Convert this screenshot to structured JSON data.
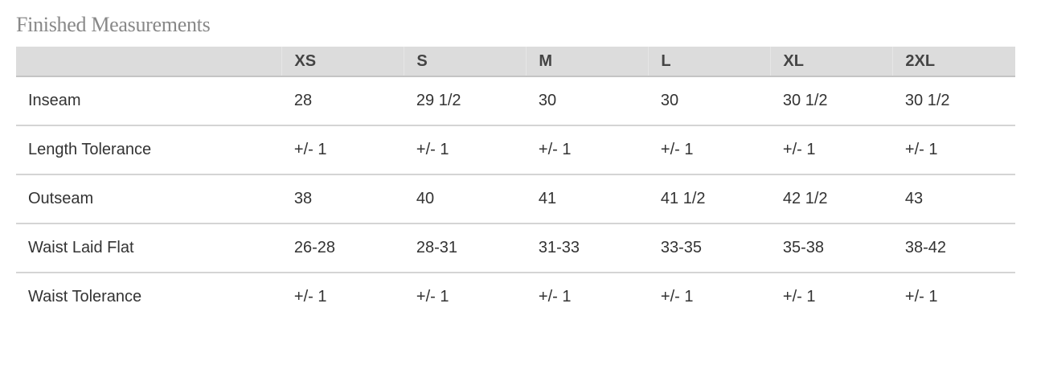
{
  "title": "Finished Measurements",
  "table": {
    "headers": [
      "",
      "XS",
      "S",
      "M",
      "L",
      "XL",
      "2XL"
    ],
    "rows": [
      [
        "Inseam",
        "28",
        "29 1/2",
        "30",
        "30",
        "30 1/2",
        "30 1/2"
      ],
      [
        "Length Tolerance",
        "+/- 1",
        "+/- 1",
        "+/- 1",
        "+/- 1",
        "+/- 1",
        "+/- 1"
      ],
      [
        "Outseam",
        "38",
        "40",
        "41",
        "41 1/2",
        "42 1/2",
        "43"
      ],
      [
        "Waist Laid Flat",
        "26-28",
        "28-31",
        "31-33",
        "33-35",
        "35-38",
        "38-42"
      ],
      [
        "Waist Tolerance",
        "+/- 1",
        "+/- 1",
        "+/- 1",
        "+/- 1",
        "+/- 1",
        "+/- 1"
      ]
    ]
  }
}
